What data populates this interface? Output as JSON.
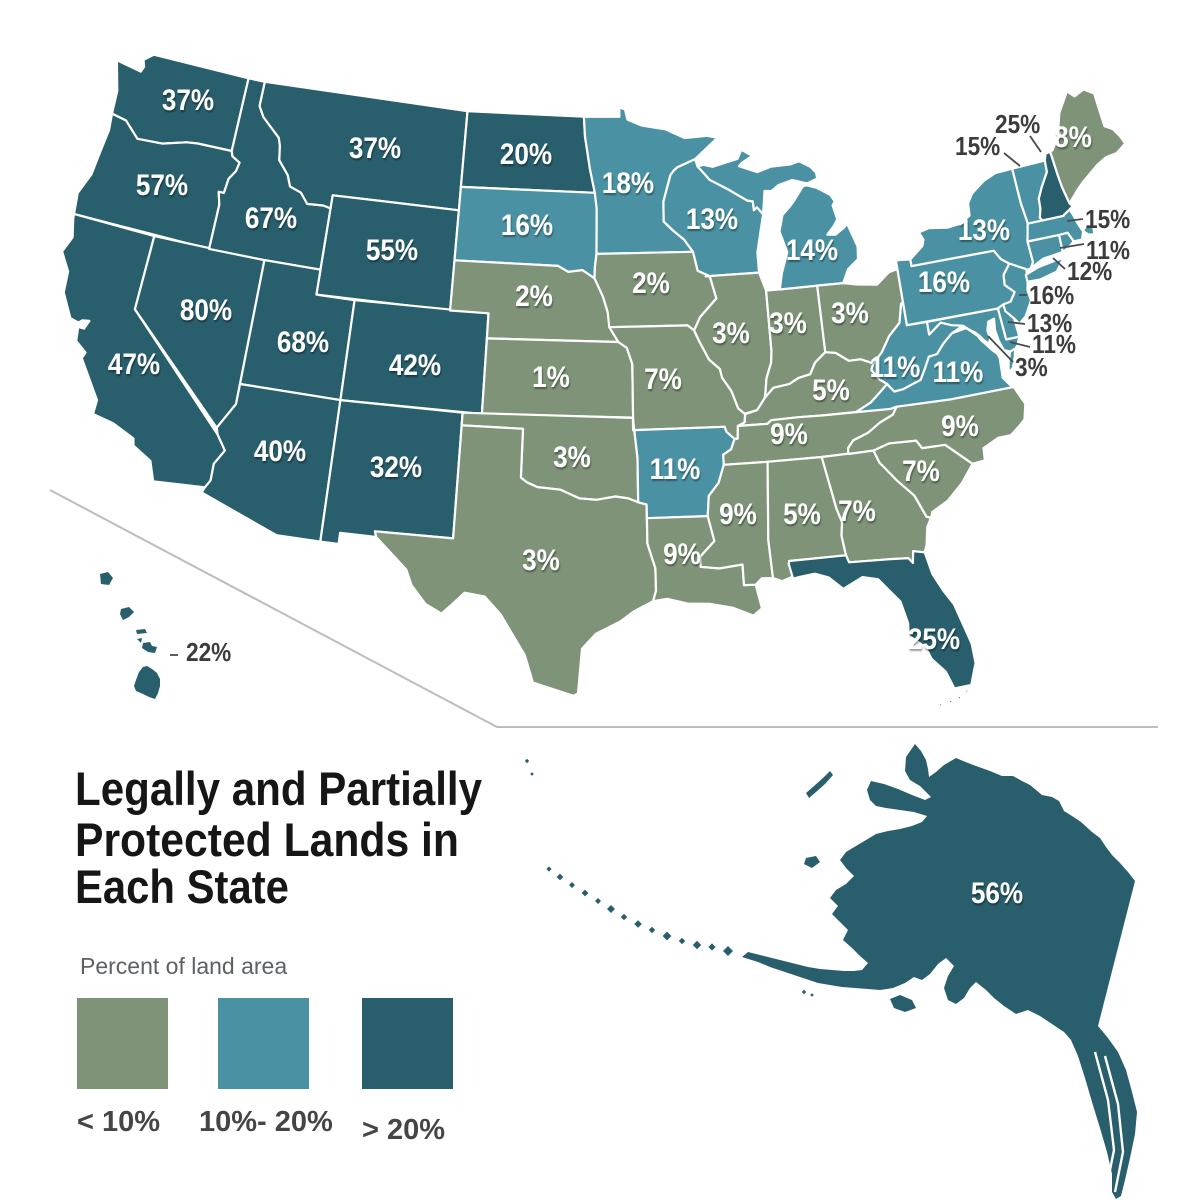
{
  "title": {
    "line1": "Legally and Partially",
    "line2": "Protected Lands in",
    "line3": "Each State"
  },
  "legend": {
    "heading": "Percent of land area",
    "items": [
      {
        "label": "< 10%",
        "category": "lt10"
      },
      {
        "label": "10%- 20%",
        "category": "mid"
      },
      {
        "label": "> 20%",
        "category": "gt20"
      }
    ]
  },
  "colors": {
    "lt10": "#7E9378",
    "mid": "#4A92A3",
    "gt20": "#295E6C",
    "state_border": "#FFFFFF",
    "label_text": "#FFFFFF",
    "callout_text": "#3C3C3C",
    "leader_line": "#4A4A4A",
    "separator_line": "#BDBDBD",
    "title_text": "#161616",
    "legend_label": "#454545",
    "legend_heading": "#5D6164",
    "background": "#FFFFFF"
  },
  "map": {
    "states": [
      {
        "id": "WA",
        "name": "Washington",
        "value": 37,
        "label": "37%",
        "label_placement": "map"
      },
      {
        "id": "OR",
        "name": "Oregon",
        "value": 57,
        "label": "57%",
        "label_placement": "map"
      },
      {
        "id": "CA",
        "name": "California",
        "value": 47,
        "label": "47%",
        "label_placement": "map"
      },
      {
        "id": "NV",
        "name": "Nevada",
        "value": 80,
        "label": "80%",
        "label_placement": "map"
      },
      {
        "id": "ID",
        "name": "Idaho",
        "value": 67,
        "label": "67%",
        "label_placement": "map"
      },
      {
        "id": "MT",
        "name": "Montana",
        "value": 37,
        "label": "37%",
        "label_placement": "map"
      },
      {
        "id": "WY",
        "name": "Wyoming",
        "value": 55,
        "label": "55%",
        "label_placement": "map"
      },
      {
        "id": "UT",
        "name": "Utah",
        "value": 68,
        "label": "68%",
        "label_placement": "map"
      },
      {
        "id": "CO",
        "name": "Colorado",
        "value": 42,
        "label": "42%",
        "label_placement": "map"
      },
      {
        "id": "AZ",
        "name": "Arizona",
        "value": 40,
        "label": "40%",
        "label_placement": "map"
      },
      {
        "id": "NM",
        "name": "New Mexico",
        "value": 32,
        "label": "32%",
        "label_placement": "map"
      },
      {
        "id": "ND",
        "name": "North Dakota",
        "value": 20,
        "label": "20%",
        "label_placement": "map"
      },
      {
        "id": "SD",
        "name": "South Dakota",
        "value": 16,
        "label": "16%",
        "label_placement": "map"
      },
      {
        "id": "NE",
        "name": "Nebraska",
        "value": 2,
        "label": "2%",
        "label_placement": "map"
      },
      {
        "id": "KS",
        "name": "Kansas",
        "value": 1,
        "label": "1%",
        "label_placement": "map"
      },
      {
        "id": "OK",
        "name": "Oklahoma",
        "value": 3,
        "label": "3%",
        "label_placement": "map"
      },
      {
        "id": "TX",
        "name": "Texas",
        "value": 3,
        "label": "3%",
        "label_placement": "map"
      },
      {
        "id": "MN",
        "name": "Minnesota",
        "value": 18,
        "label": "18%",
        "label_placement": "map"
      },
      {
        "id": "IA",
        "name": "Iowa",
        "value": 2,
        "label": "2%",
        "label_placement": "map"
      },
      {
        "id": "MO",
        "name": "Missouri",
        "value": 7,
        "label": "7%",
        "label_placement": "map"
      },
      {
        "id": "AR",
        "name": "Arkansas",
        "value": 11,
        "label": "11%",
        "label_placement": "map"
      },
      {
        "id": "LA",
        "name": "Louisiana",
        "value": 9,
        "label": "9%",
        "label_placement": "map"
      },
      {
        "id": "WI",
        "name": "Wisconsin",
        "value": 13,
        "label": "13%",
        "label_placement": "map"
      },
      {
        "id": "IL",
        "name": "Illinois",
        "value": 3,
        "label": "3%",
        "label_placement": "map"
      },
      {
        "id": "IN",
        "name": "Indiana",
        "value": 3,
        "label": "3%",
        "label_placement": "map"
      },
      {
        "id": "MI",
        "name": "Michigan",
        "value": 14,
        "label": "14%",
        "label_placement": "map"
      },
      {
        "id": "OH",
        "name": "Ohio",
        "value": 3,
        "label": "3%",
        "label_placement": "map"
      },
      {
        "id": "KY",
        "name": "Kentucky",
        "value": 5,
        "label": "5%",
        "label_placement": "map"
      },
      {
        "id": "TN",
        "name": "Tennessee",
        "value": 9,
        "label": "9%",
        "label_placement": "map"
      },
      {
        "id": "MS",
        "name": "Mississippi",
        "value": 9,
        "label": "9%",
        "label_placement": "map"
      },
      {
        "id": "AL",
        "name": "Alabama",
        "value": 5,
        "label": "5%",
        "label_placement": "map"
      },
      {
        "id": "GA",
        "name": "Georgia",
        "value": 7,
        "label": "7%",
        "label_placement": "map"
      },
      {
        "id": "FL",
        "name": "Florida",
        "value": 25,
        "label": "25%",
        "label_placement": "map"
      },
      {
        "id": "SC",
        "name": "South Carolina",
        "value": 7,
        "label": "7%",
        "label_placement": "map"
      },
      {
        "id": "NC",
        "name": "North Carolina",
        "value": 9,
        "label": "9%",
        "label_placement": "map"
      },
      {
        "id": "VA",
        "name": "Virginia",
        "value": 11,
        "label": "11%",
        "label_placement": "map"
      },
      {
        "id": "WV",
        "name": "West Virginia",
        "value": 11,
        "label": "11%",
        "label_placement": "map"
      },
      {
        "id": "MD",
        "name": "Maryland",
        "value": 11,
        "label": "11%",
        "label_placement": "callout"
      },
      {
        "id": "DE",
        "name": "Delaware",
        "value": 13,
        "label": "13%",
        "label_placement": "callout"
      },
      {
        "id": "NJ",
        "name": "New Jersey",
        "value": 16,
        "label": "16%",
        "label_placement": "callout"
      },
      {
        "id": "PA",
        "name": "Pennsylvania",
        "value": 16,
        "label": "16%",
        "label_placement": "map"
      },
      {
        "id": "NY",
        "name": "New York",
        "value": 13,
        "label": "13%",
        "label_placement": "map"
      },
      {
        "id": "CT",
        "name": "Connecticut",
        "value": 12,
        "label": "12%",
        "label_placement": "callout"
      },
      {
        "id": "RI",
        "name": "Rhode Island",
        "value": 11,
        "label": "11%",
        "label_placement": "callout"
      },
      {
        "id": "MA",
        "name": "Massachusetts",
        "value": 15,
        "label": "15%",
        "label_placement": "callout"
      },
      {
        "id": "VT",
        "name": "Vermont",
        "value": 15,
        "label": "15%",
        "label_placement": "callout"
      },
      {
        "id": "NH",
        "name": "New Hampshire",
        "value": 25,
        "label": "25%",
        "label_placement": "callout"
      },
      {
        "id": "ME",
        "name": "Maine",
        "value": 8,
        "label": "8%",
        "label_placement": "map"
      },
      {
        "id": "AK",
        "name": "Alaska",
        "value": 56,
        "label": "56%",
        "label_placement": "map"
      },
      {
        "id": "HI",
        "name": "Hawaii",
        "value": 22,
        "label": "22%",
        "label_placement": "callout"
      },
      {
        "id": "DC",
        "name": "District of Columbia",
        "value": 3,
        "label": "3%",
        "label_placement": "callout"
      }
    ],
    "thresholds": {
      "lt10_max": 10,
      "mid_max": 20
    }
  }
}
